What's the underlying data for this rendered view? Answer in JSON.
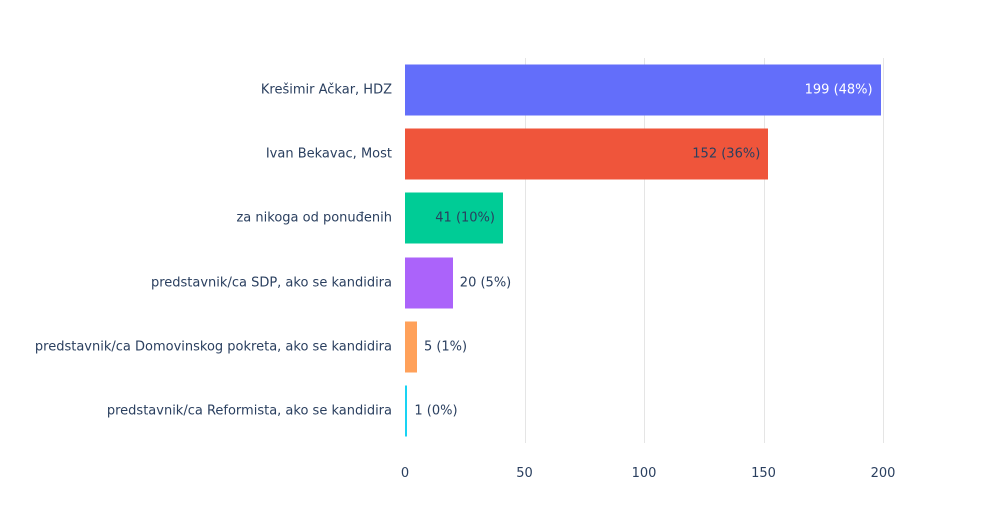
{
  "chart_data": {
    "type": "bar",
    "orientation": "horizontal",
    "title": "",
    "xlabel": "",
    "ylabel": "",
    "categories": [
      "Krešimir Ačkar, HDZ",
      "Ivan Bekavac, Most",
      "za nikoga od ponuđenih",
      "predstavnik/ca SDP, ako se kandidira",
      "predstavnik/ca Domovinskog pokreta, ako se kandidira",
      "predstavnik/ca Reformista, ako se kandidira"
    ],
    "values": [
      199,
      152,
      41,
      20,
      5,
      1
    ],
    "bar_labels": [
      "199 (48%)",
      "152 (36%)",
      "41 (10%)",
      "20 (5%)",
      "5 (1%)",
      "1 (0%)"
    ],
    "bar_colors": [
      "#636efa",
      "#ef553b",
      "#00cc96",
      "#ab63fa",
      "#ffa15a",
      "#19d3f3"
    ],
    "label_inside": [
      true,
      true,
      true,
      false,
      false,
      false
    ],
    "label_colors": [
      "#ffffff",
      "#2a3f5f",
      "#2a3f5f",
      "#2a3f5f",
      "#2a3f5f",
      "#2a3f5f"
    ],
    "xticks": [
      "0",
      "50",
      "100",
      "150",
      "200"
    ],
    "xtick_values": [
      0,
      50,
      100,
      150,
      200
    ],
    "xlim": [
      0,
      200
    ],
    "grid": true,
    "legend": false
  },
  "style": {
    "text_color": "#2a3f5f",
    "grid_color": "#e5e5e5",
    "background": "#ffffff"
  }
}
